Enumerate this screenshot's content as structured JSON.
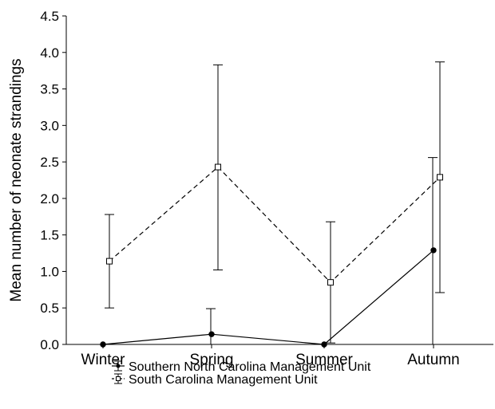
{
  "chart_data": {
    "type": "line",
    "title": "",
    "xlabel": "",
    "ylabel": "Mean number of neonate strandings",
    "ylim": [
      0,
      4.5
    ],
    "yticks": [
      "0.0",
      "0.5",
      "1.0",
      "1.5",
      "2.0",
      "2.5",
      "3.0",
      "3.5",
      "4.0",
      "4.5"
    ],
    "categories": [
      "Winter",
      "Spring",
      "Summer",
      "Autumn"
    ],
    "grid": false,
    "legend_position": "bottom",
    "series": [
      {
        "name": "Southern North Carolina Management Unit",
        "style": "solid",
        "marker": "filled-circle",
        "color": "#000000",
        "values": [
          0.0,
          0.14,
          0.0,
          1.29
        ],
        "err_low": [
          0.0,
          0.0,
          0.0,
          0.0
        ],
        "err_high": [
          0.0,
          0.49,
          0.0,
          2.56
        ]
      },
      {
        "name": "South Carolina Management Unit",
        "style": "dashed",
        "marker": "open-square",
        "color": "#000000",
        "values": [
          1.14,
          2.43,
          0.85,
          2.29
        ],
        "err_low": [
          0.5,
          1.02,
          0.02,
          0.71
        ],
        "err_high": [
          1.78,
          3.83,
          1.68,
          3.87
        ]
      }
    ]
  }
}
